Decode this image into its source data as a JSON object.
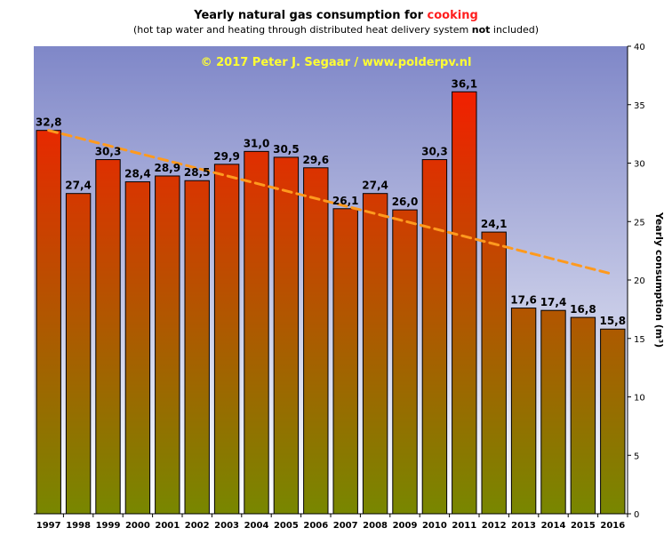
{
  "title": {
    "prefix": "Yearly natural  gas consumption  for ",
    "highlight": "cooking",
    "highlight_color": "#ff1e1e"
  },
  "subtitle": {
    "prefix": "(hot tap water and heating through distributed heat delivery system ",
    "bold": "not",
    "suffix": " included)"
  },
  "watermark": "© 2017  Peter J. Segaar  /  www.polderpv.nl",
  "colors": {
    "plot_bg_top": "#7f87c8",
    "plot_bg_bottom": "#ffffff",
    "bar_top": "#ff1400",
    "bar_bottom": "#788700",
    "trend": "#ff9a1e",
    "watermark": "#ffff33"
  },
  "chart_data": {
    "type": "bar",
    "categories": [
      "1997",
      "1998",
      "1999",
      "2000",
      "2001",
      "2002",
      "2003",
      "2004",
      "2005",
      "2006",
      "2007",
      "2008",
      "2009",
      "2010",
      "2011",
      "2012",
      "2013",
      "2014",
      "2015",
      "2016"
    ],
    "values": [
      32.8,
      27.4,
      30.3,
      28.4,
      28.9,
      28.5,
      29.9,
      31.0,
      30.5,
      29.6,
      26.1,
      27.4,
      26.0,
      30.3,
      36.1,
      24.1,
      17.6,
      17.4,
      16.8,
      15.8
    ],
    "value_labels": [
      "32,8",
      "27,4",
      "30,3",
      "28,4",
      "28,9",
      "28,5",
      "29,9",
      "31,0",
      "30,5",
      "29,6",
      "26,1",
      "27,4",
      "26,0",
      "30,3",
      "36,1",
      "24,1",
      "17,6",
      "17,4",
      "16,8",
      "15,8"
    ],
    "ylabel": "Yearly consumption (m³)",
    "ylim": [
      0,
      40
    ],
    "yticks": [
      "0",
      "5",
      "10",
      "15",
      "20",
      "25",
      "30",
      "35",
      "40"
    ],
    "y_axis_side": "right",
    "trendline": {
      "style": "dashed",
      "start": 32.8,
      "end": 20.5
    },
    "legend": "none",
    "grid": false
  }
}
